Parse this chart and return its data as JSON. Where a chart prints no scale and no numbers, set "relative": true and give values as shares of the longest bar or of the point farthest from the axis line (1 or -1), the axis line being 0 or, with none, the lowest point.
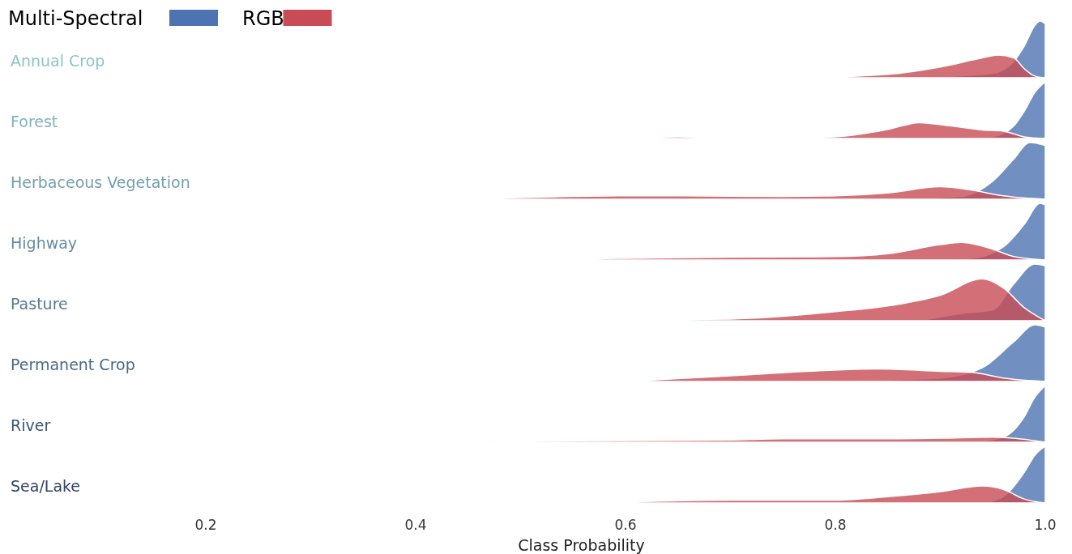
{
  "chart_data": [
    {
      "type": "area",
      "ylabel": "Annual Crop",
      "relative": true,
      "xlim": [
        0,
        1
      ],
      "tick_labels": false,
      "legend": "top left",
      "series": [
        {
          "name": "Multi-Spectral",
          "color": "#4d73b0",
          "x": [
            0.82,
            0.9,
            0.95,
            0.97,
            0.98,
            0.99,
            0.995,
            1.0
          ],
          "values": [
            0,
            0.02,
            0.08,
            0.29,
            0.56,
            0.92,
            1,
            0.95
          ]
        },
        {
          "name": "RGB",
          "color": "#c84b55",
          "x": [
            0.77,
            0.85,
            0.9,
            0.94,
            0.955,
            0.97,
            0.98,
            0.99,
            1.0
          ],
          "values": [
            0,
            0.06,
            0.19,
            0.35,
            0.4,
            0.35,
            0.16,
            0.03,
            0
          ]
        }
      ]
    },
    {
      "type": "area",
      "ylabel": "Forest",
      "relative": true,
      "xlim": [
        0,
        1
      ],
      "tick_labels": false,
      "series": [
        {
          "color": "#4d73b0",
          "x": [
            0.92,
            0.95,
            0.97,
            0.98,
            0.99,
            1.0
          ],
          "values": [
            0,
            0.03,
            0.22,
            0.48,
            0.81,
            1
          ]
        },
        {
          "color": "#c84b55",
          "x": [
            0.49,
            0.55,
            0.6,
            0.65,
            0.7,
            0.75,
            0.8,
            0.85,
            0.88,
            0.91,
            0.94,
            0.96,
            0.98,
            1.0
          ],
          "values": [
            0,
            0.01,
            0.01,
            0.03,
            0.01,
            0.01,
            0.03,
            0.16,
            0.28,
            0.22,
            0.15,
            0.13,
            0.03,
            0
          ]
        }
      ]
    },
    {
      "type": "area",
      "ylabel": "Herbaceous Vegetation",
      "relative": true,
      "xlim": [
        0,
        1
      ],
      "tick_labels": false,
      "series": [
        {
          "color": "#4d73b0",
          "x": [
            0.85,
            0.92,
            0.95,
            0.97,
            0.985,
            1.0
          ],
          "values": [
            0,
            0.05,
            0.32,
            0.71,
            1,
            0.95
          ]
        },
        {
          "color": "#c84b55",
          "x": [
            0.42,
            0.5,
            0.6,
            0.65,
            0.75,
            0.8,
            0.85,
            0.9,
            0.93,
            0.96,
            1.0
          ],
          "values": [
            0,
            0.03,
            0.06,
            0.06,
            0.05,
            0.06,
            0.11,
            0.22,
            0.16,
            0.06,
            0
          ]
        }
      ]
    },
    {
      "type": "area",
      "ylabel": "Highway",
      "relative": true,
      "xlim": [
        0,
        1
      ],
      "tick_labels": false,
      "series": [
        {
          "color": "#4d73b0",
          "x": [
            0.88,
            0.93,
            0.96,
            0.98,
            0.995,
            1.0
          ],
          "values": [
            0,
            0.03,
            0.23,
            0.63,
            1,
            0.97
          ]
        },
        {
          "color": "#c84b55",
          "x": [
            0.5,
            0.6,
            0.7,
            0.8,
            0.85,
            0.9,
            0.92,
            0.95,
            0.97,
            1.0
          ],
          "values": [
            0,
            0.03,
            0.05,
            0.06,
            0.11,
            0.27,
            0.31,
            0.19,
            0.06,
            0
          ]
        }
      ]
    },
    {
      "type": "area",
      "ylabel": "Pasture",
      "relative": true,
      "xlim": [
        0,
        1
      ],
      "tick_labels": false,
      "series": [
        {
          "color": "#4d73b0",
          "x": [
            0.88,
            0.92,
            0.95,
            0.97,
            0.99,
            1.0
          ],
          "values": [
            0,
            0.13,
            0.19,
            0.65,
            1,
            0.97
          ]
        },
        {
          "color": "#c84b55",
          "x": [
            0.51,
            0.7,
            0.8,
            0.86,
            0.9,
            0.94,
            0.96,
            0.98,
            1.0
          ],
          "values": [
            0,
            0.03,
            0.16,
            0.29,
            0.45,
            0.74,
            0.58,
            0.23,
            0
          ]
        }
      ]
    },
    {
      "type": "area",
      "ylabel": "Permanent Crop",
      "relative": true,
      "xlim": [
        0,
        1
      ],
      "tick_labels": false,
      "series": [
        {
          "color": "#4d73b0",
          "x": [
            0.78,
            0.9,
            0.94,
            0.97,
            0.99,
            1.0
          ],
          "values": [
            0,
            0.06,
            0.24,
            0.7,
            1,
            0.96
          ]
        },
        {
          "color": "#c84b55",
          "x": [
            0.6,
            0.7,
            0.8,
            0.84,
            0.9,
            0.93,
            0.96,
            1.0
          ],
          "values": [
            0,
            0.1,
            0.2,
            0.22,
            0.18,
            0.16,
            0.06,
            0
          ]
        }
      ]
    },
    {
      "type": "area",
      "ylabel": "River",
      "relative": true,
      "xlim": [
        0,
        1
      ],
      "tick_labels": false,
      "series": [
        {
          "color": "#4d73b0",
          "x": [
            0.93,
            0.96,
            0.98,
            0.99,
            1.0
          ],
          "values": [
            0,
            0.09,
            0.45,
            0.79,
            1
          ]
        },
        {
          "color": "#c84b55",
          "x": [
            0.4,
            0.5,
            0.6,
            0.7,
            0.75,
            0.85,
            0.9,
            0.95,
            0.97,
            1.0
          ],
          "values": [
            0,
            0.02,
            0.03,
            0.04,
            0.06,
            0.06,
            0.07,
            0.09,
            0.07,
            0
          ]
        }
      ]
    },
    {
      "type": "area",
      "ylabel": "Sea/Lake",
      "xlabel": "Class Probability",
      "relative": true,
      "xlim": [
        0,
        1
      ],
      "xticks": [
        0.2,
        0.4,
        0.6,
        0.8,
        {
          "value": 1,
          "label": "1.0"
        }
      ],
      "tick_labels": "x",
      "series": [
        {
          "color": "#4d73b0",
          "x": [
            0.94,
            0.96,
            0.98,
            0.99,
            1.0
          ],
          "values": [
            0,
            0.11,
            0.54,
            0.84,
            1
          ]
        },
        {
          "color": "#c84b55",
          "x": [
            0.57,
            0.65,
            0.7,
            0.8,
            0.85,
            0.9,
            0.94,
            0.96,
            0.98,
            1.0
          ],
          "values": [
            0,
            0.04,
            0.05,
            0.05,
            0.11,
            0.2,
            0.3,
            0.24,
            0.07,
            0
          ]
        }
      ]
    }
  ]
}
